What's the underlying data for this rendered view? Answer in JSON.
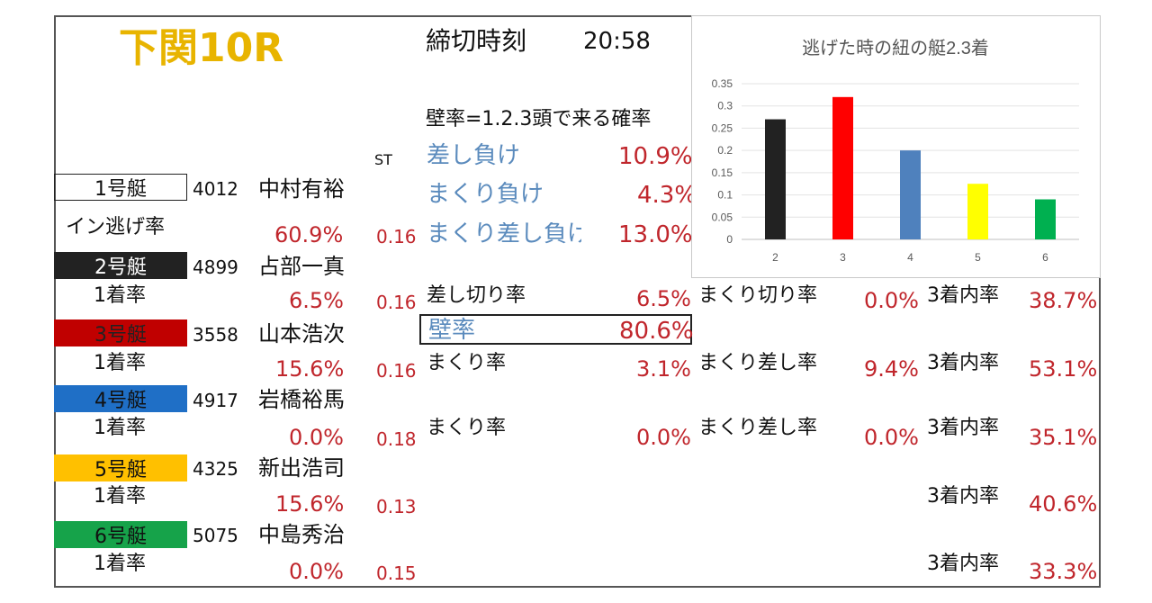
{
  "race": {
    "title": "下関10R",
    "deadline_label": "締切時刻",
    "deadline_time": "20:58"
  },
  "wall_definition": "壁率=1.2.3頭で来る確率",
  "st_label": "ST",
  "inner_losses": [
    {
      "label": "差し負け",
      "value": "10.9%"
    },
    {
      "label": "まくり負け",
      "value": "4.3%"
    },
    {
      "label": "まくり差し負け",
      "value": "13.0%"
    }
  ],
  "boats": [
    {
      "label": "1号艇",
      "reg": "4012",
      "name": "中村有裕",
      "rate_label": "イン逃げ率",
      "rate": "60.9%",
      "st": "0.16",
      "color": "#ffffff",
      "text_color": "#111111"
    },
    {
      "label": "2号艇",
      "reg": "4899",
      "name": "占部一真",
      "rate_label": "1着率",
      "rate": "6.5%",
      "st": "0.16",
      "color": "#222222",
      "text_color": "#ffffff"
    },
    {
      "label": "3号艇",
      "reg": "3558",
      "name": "山本浩次",
      "rate_label": "1着率",
      "rate": "15.6%",
      "st": "0.16",
      "color": "#c00000",
      "text_color": "#222222"
    },
    {
      "label": "4号艇",
      "reg": "4917",
      "name": "岩橋裕馬",
      "rate_label": "1着率",
      "rate": "0.0%",
      "st": "0.18",
      "color": "#1f6fc6",
      "text_color": "#111111"
    },
    {
      "label": "5号艇",
      "reg": "4325",
      "name": "新出浩司",
      "rate_label": "1着率",
      "rate": "15.6%",
      "st": "0.13",
      "color": "#ffc000",
      "text_color": "#111111"
    },
    {
      "label": "6号艇",
      "reg": "5075",
      "name": "中島秀治",
      "rate_label": "1着率",
      "rate": "0.0%",
      "st": "0.15",
      "color": "#16a34a",
      "text_color": "#111111"
    }
  ],
  "stats": {
    "sashikiri_label": "差し切り率",
    "sashikiri_value": "6.5%",
    "wall_label": "壁率",
    "wall_value": "80.6%",
    "boat2_makuri_kiri_label": "まくり切り率",
    "boat2_makuri_kiri_value": "0.0%",
    "boat2_top3_label": "3着内率",
    "boat2_top3_value": "38.7%",
    "boat3_makuri_label": "まくり率",
    "boat3_makuri_value": "3.1%",
    "boat3_makuri_sashi_label": "まくり差し率",
    "boat3_makuri_sashi_value": "9.4%",
    "boat3_top3_label": "3着内率",
    "boat3_top3_value": "53.1%",
    "boat4_makuri_label": "まくり率",
    "boat4_makuri_value": "0.0%",
    "boat4_makuri_sashi_label": "まくり差し率",
    "boat4_makuri_sashi_value": "0.0%",
    "boat4_top3_label": "3着内率",
    "boat4_top3_value": "35.1%",
    "boat5_top3_label": "3着内率",
    "boat5_top3_value": "40.6%",
    "boat6_top3_label": "3着内率",
    "boat6_top3_value": "33.3%"
  },
  "chart_data": {
    "type": "bar",
    "title": "逃げた時の紐の艇2.3着",
    "categories": [
      "2",
      "3",
      "4",
      "5",
      "6"
    ],
    "values": [
      0.27,
      0.32,
      0.2,
      0.125,
      0.09
    ],
    "colors": [
      "#222222",
      "#ff0000",
      "#4f81bd",
      "#ffff00",
      "#00b050"
    ],
    "ylim": [
      0,
      0.35
    ],
    "yticks": [
      "0",
      "0.05",
      "0.1",
      "0.15",
      "0.2",
      "0.25",
      "0.3",
      "0.35"
    ],
    "grid": true,
    "xlabel": "",
    "ylabel": ""
  }
}
